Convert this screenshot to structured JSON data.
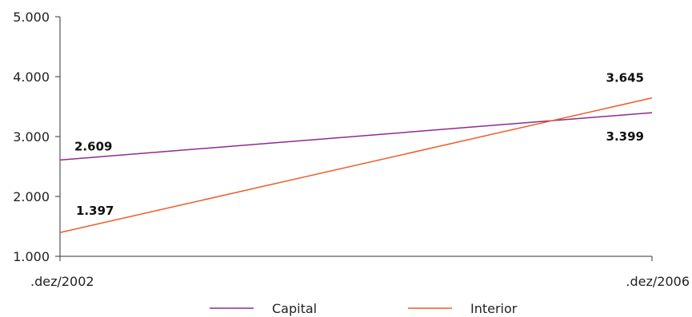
{
  "chart_data": {
    "type": "line",
    "categories": [
      ".dez/2002",
      ".dez/2006"
    ],
    "series": [
      {
        "name": "Capital",
        "values": [
          2609,
          3399
        ],
        "labels": [
          "2.609",
          "3.399"
        ],
        "color": "#8e2a8e"
      },
      {
        "name": "Interior",
        "values": [
          1397,
          3645
        ],
        "labels": [
          "1.397",
          "3.645"
        ],
        "color": "#ef5a2a"
      }
    ],
    "yticks": [
      1000,
      2000,
      3000,
      4000,
      5000
    ],
    "ytick_labels": [
      "1.000",
      "2.000",
      "3.000",
      "4.000",
      "5.000"
    ],
    "ylim": [
      1000,
      5000
    ],
    "grid": false,
    "legend_position": "bottom"
  }
}
